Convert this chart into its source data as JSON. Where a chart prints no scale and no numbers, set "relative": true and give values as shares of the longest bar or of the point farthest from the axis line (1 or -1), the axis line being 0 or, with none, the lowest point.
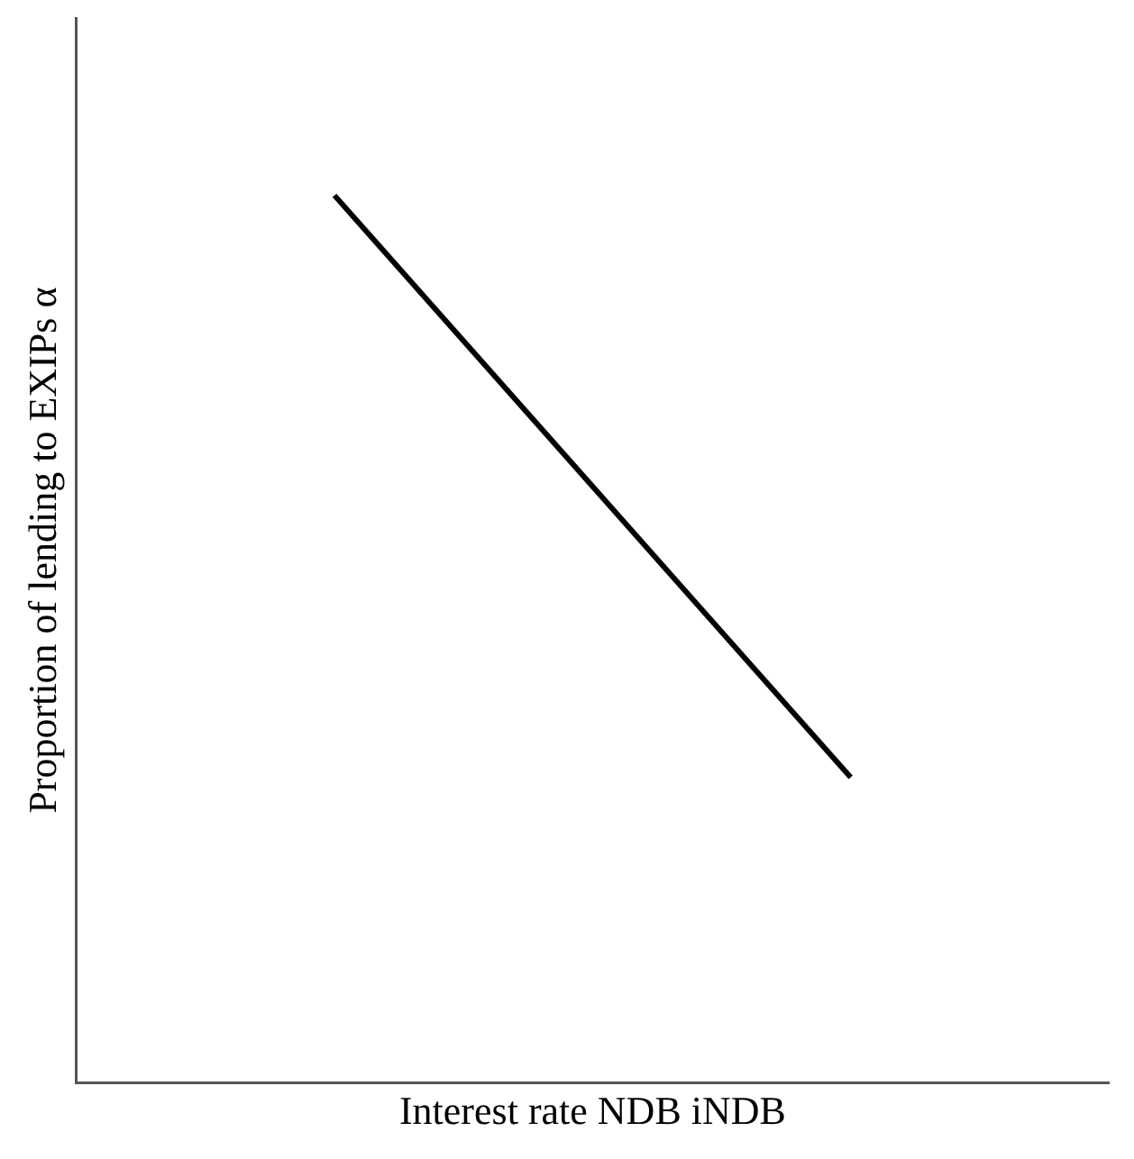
{
  "chart_data": {
    "type": "line",
    "xlabel": "Interest rate NDB iNDB",
    "ylabel": "Proportion of lending to EXIPs α",
    "categories": [
      null,
      null
    ],
    "series": [
      {
        "color": "#000000",
        "values": [
          1,
          0.344
        ]
      }
    ],
    "relative": true,
    "grid": false,
    "legend": false,
    "marker": "none",
    "line_style": "solid"
  }
}
